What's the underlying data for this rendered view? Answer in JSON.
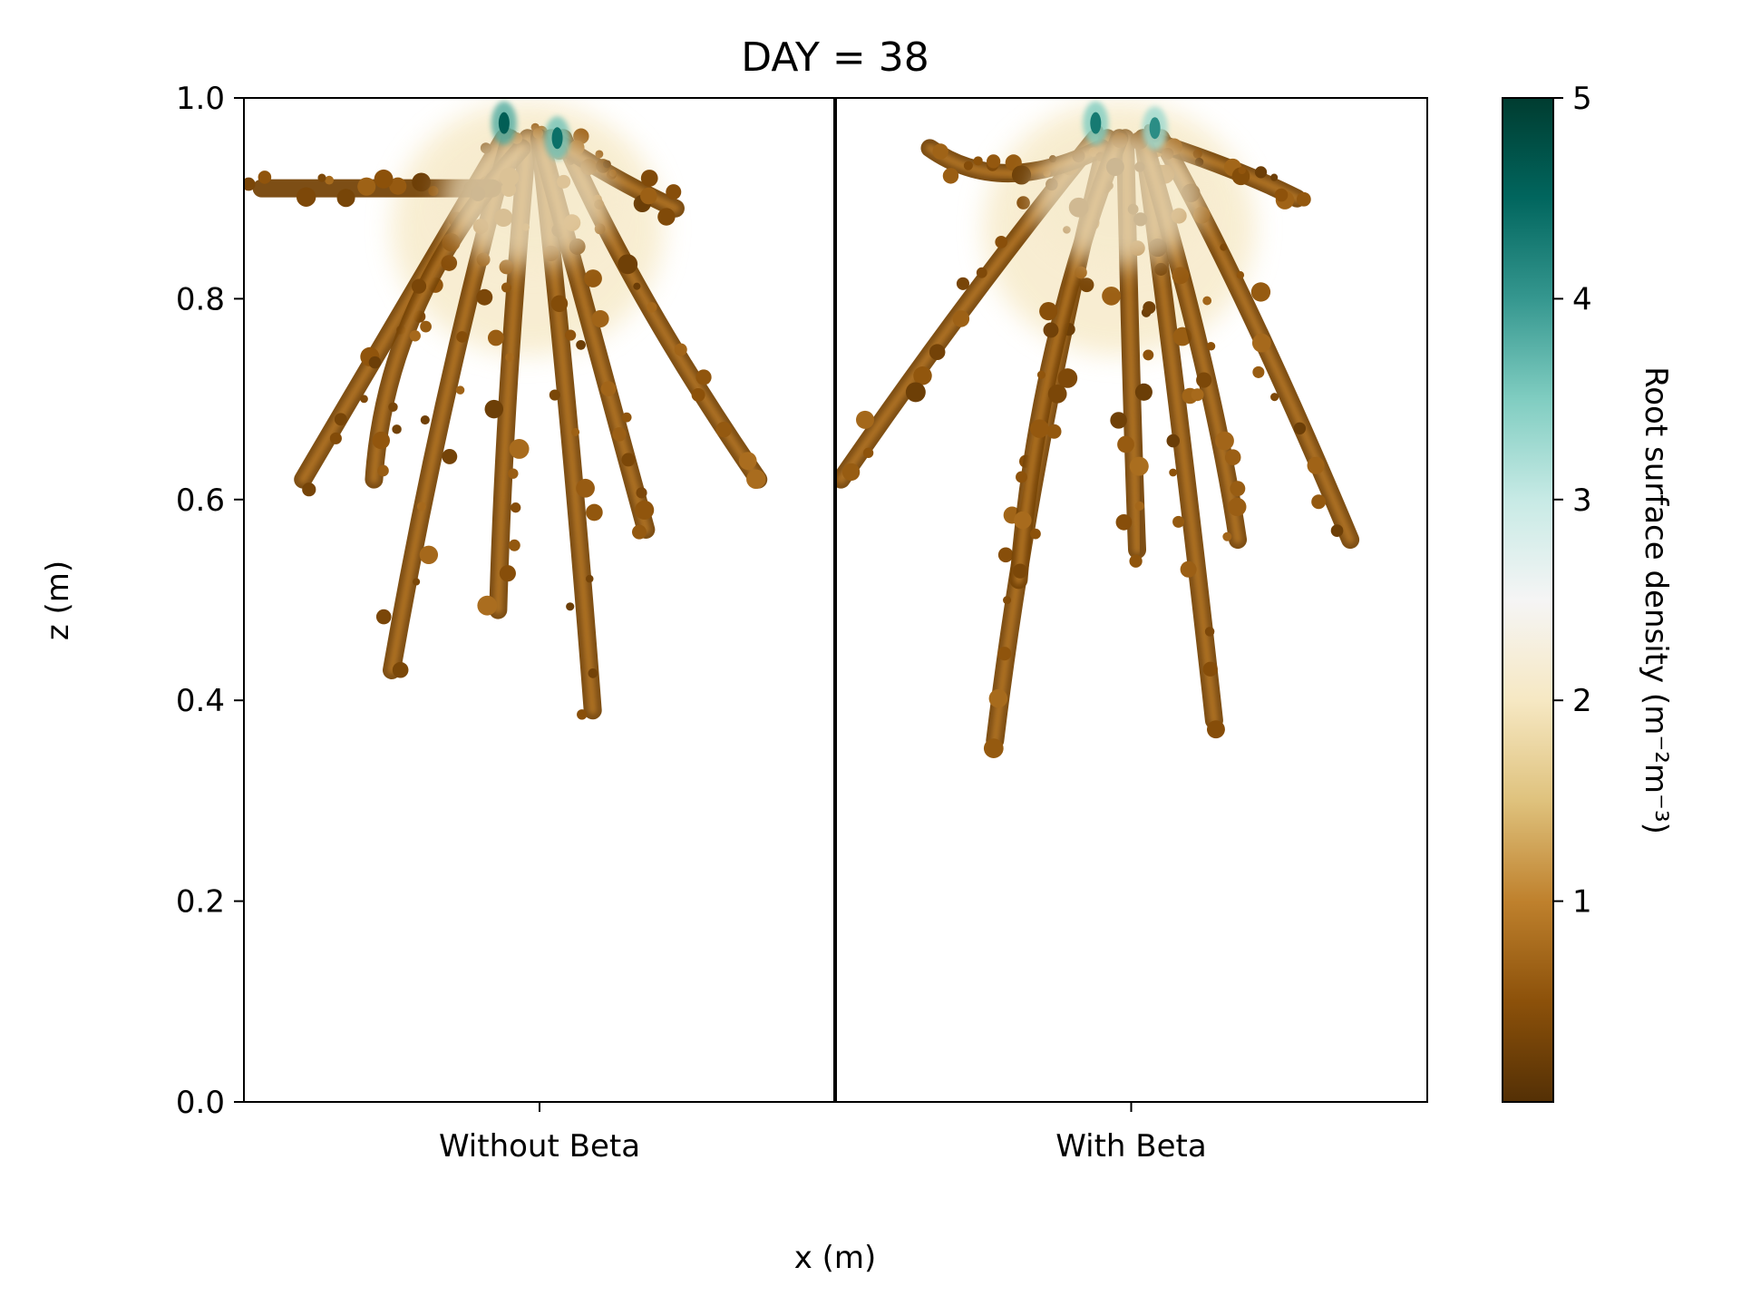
{
  "chart_data": {
    "type": "heatmap",
    "title": "DAY = 38",
    "xlabel": "x (m)",
    "ylabel": "z (m)",
    "ylim": [
      0.0,
      1.0
    ],
    "yticks": [
      "0.0",
      "0.2",
      "0.4",
      "0.6",
      "0.8",
      "1.0"
    ],
    "panels": [
      {
        "label": "Without Beta",
        "depth_min": 0.39,
        "hot_spots": [
          {
            "x": 0.44,
            "z": 0.975,
            "value": 4.6
          },
          {
            "x": 0.53,
            "z": 0.96,
            "value": 4.4
          }
        ],
        "roots": [
          {
            "x": [
              0.44,
              0.3,
              0.1
            ],
            "z": [
              0.96,
              0.82,
              0.62
            ]
          },
          {
            "x": [
              0.45,
              0.33,
              0.25
            ],
            "z": [
              0.96,
              0.7,
              0.43
            ]
          },
          {
            "x": [
              0.48,
              0.44,
              0.43
            ],
            "z": [
              0.96,
              0.7,
              0.49
            ]
          },
          {
            "x": [
              0.5,
              0.55,
              0.59
            ],
            "z": [
              0.96,
              0.7,
              0.39
            ]
          },
          {
            "x": [
              0.54,
              0.66,
              0.87
            ],
            "z": [
              0.96,
              0.8,
              0.62
            ]
          },
          {
            "x": [
              0.47,
              0.24,
              0.22
            ],
            "z": [
              0.95,
              0.8,
              0.62
            ]
          },
          {
            "x": [
              0.42,
              0.18,
              0.03
            ],
            "z": [
              0.91,
              0.91,
              0.91
            ]
          },
          {
            "x": [
              0.52,
              0.62,
              0.73
            ],
            "z": [
              0.96,
              0.92,
              0.89
            ]
          },
          {
            "x": [
              0.5,
              0.62,
              0.68
            ],
            "z": [
              0.96,
              0.7,
              0.57
            ]
          }
        ]
      },
      {
        "label": "With Beta",
        "depth_min": 0.36,
        "hot_spots": [
          {
            "x": 0.44,
            "z": 0.975,
            "value": 4.3
          },
          {
            "x": 0.54,
            "z": 0.97,
            "value": 4.1
          }
        ],
        "roots": [
          {
            "x": [
              0.44,
              0.22,
              0.01
            ],
            "z": [
              0.96,
              0.8,
              0.62
            ]
          },
          {
            "x": [
              0.46,
              0.33,
              0.27
            ],
            "z": [
              0.96,
              0.65,
              0.36
            ]
          },
          {
            "x": [
              0.49,
              0.5,
              0.51
            ],
            "z": [
              0.96,
              0.7,
              0.55
            ]
          },
          {
            "x": [
              0.52,
              0.58,
              0.64
            ],
            "z": [
              0.96,
              0.7,
              0.38
            ]
          },
          {
            "x": [
              0.55,
              0.7,
              0.87
            ],
            "z": [
              0.96,
              0.8,
              0.56
            ]
          },
          {
            "x": [
              0.45,
              0.28,
              0.16
            ],
            "z": [
              0.95,
              0.9,
              0.95
            ]
          },
          {
            "x": [
              0.52,
              0.68,
              0.78
            ],
            "z": [
              0.96,
              0.93,
              0.9
            ]
          },
          {
            "x": [
              0.48,
              0.34,
              0.31
            ],
            "z": [
              0.96,
              0.75,
              0.52
            ]
          },
          {
            "x": [
              0.52,
              0.64,
              0.68
            ],
            "z": [
              0.96,
              0.72,
              0.56
            ]
          }
        ]
      }
    ],
    "colorbar": {
      "label": "Root surface density (m⁻²m⁻³)",
      "min": 0,
      "max": 5,
      "ticks": [
        "1",
        "2",
        "3",
        "4",
        "5"
      ],
      "colormap": "BrBG",
      "stops": [
        "#543005",
        "#8c510a",
        "#bf812d",
        "#dfc27d",
        "#f6e8c3",
        "#f5f5f5",
        "#c7eae5",
        "#80cdc1",
        "#35978f",
        "#01665e",
        "#003c30"
      ]
    }
  }
}
